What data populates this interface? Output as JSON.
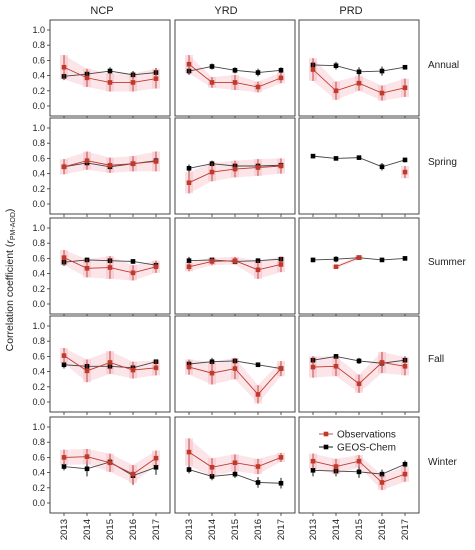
{
  "chart_data": {
    "type": "line",
    "layout": "small-multiples grid, 5 rows x 3 columns",
    "ylabel": "Correlation coefficient (r_PM-AOD)",
    "ylabel_main": "Correlation coefficient (",
    "ylabel_r": "r",
    "ylabel_sub": "PM-AOD",
    "ylabel_close": ")",
    "ylim": [
      0,
      1
    ],
    "yticks": [
      "0.0",
      "0.2",
      "0.4",
      "0.6",
      "0.8",
      "1.0"
    ],
    "x": [
      "2013",
      "2014",
      "2015",
      "2016",
      "2017"
    ],
    "columns": [
      "NCP",
      "YRD",
      "PRD"
    ],
    "rows": [
      "Annual",
      "Spring",
      "Summer",
      "Fall",
      "Winter"
    ],
    "legend": {
      "placement": "inside bottom-right panel, top-right",
      "entries": [
        "Observations",
        "GEOS-Chem"
      ]
    },
    "series_colors": {
      "Observations": "#c0392b",
      "GEOS-Chem": "#000000",
      "error_band": "#f5b5c0"
    },
    "panels": [
      [
        {
          "obs": [
            0.51,
            0.37,
            0.31,
            0.31,
            0.36
          ],
          "obs_err": [
            0.16,
            0.12,
            0.12,
            0.12,
            0.13
          ],
          "model": [
            0.39,
            0.42,
            0.46,
            0.41,
            0.44
          ],
          "model_err": [
            0.05,
            0.05,
            0.05,
            0.05,
            0.06
          ]
        },
        {
          "obs": [
            0.55,
            0.31,
            0.31,
            0.25,
            0.37
          ],
          "obs_err": [
            0.12,
            0.07,
            0.1,
            0.07,
            0.07
          ],
          "model": [
            0.46,
            0.52,
            0.47,
            0.44,
            0.47
          ],
          "model_err": [
            0.05,
            0.04,
            0.04,
            0.05,
            0.04
          ]
        },
        {
          "obs": [
            0.48,
            0.2,
            0.3,
            0.17,
            0.24
          ],
          "obs_err": [
            0.15,
            0.12,
            0.1,
            0.1,
            0.12
          ],
          "model": [
            0.54,
            0.53,
            0.45,
            0.46,
            0.51
          ],
          "model_err": [
            0.05,
            0.05,
            0.06,
            0.06,
            0.03
          ]
        }
      ],
      [
        {
          "obs": [
            0.49,
            0.57,
            0.51,
            0.53,
            0.56
          ],
          "obs_err": [
            0.1,
            0.12,
            0.1,
            0.1,
            0.13
          ],
          "model": [
            0.49,
            0.54,
            0.49,
            0.53,
            0.57
          ],
          "model_err": [
            0.05,
            0.05,
            0.05,
            0.05,
            0.05
          ]
        },
        {
          "obs": [
            0.28,
            0.42,
            0.46,
            0.48,
            0.5
          ],
          "obs_err": [
            0.14,
            0.12,
            0.11,
            0.11,
            0.1
          ],
          "model": [
            0.47,
            0.53,
            0.5,
            0.5,
            0.51
          ],
          "model_err": [
            0.05,
            0.04,
            0.04,
            0.04,
            0.04
          ]
        },
        {
          "obs": [
            null,
            null,
            null,
            null,
            0.42
          ],
          "obs_err": [
            0,
            0,
            0,
            0,
            0.08
          ],
          "model": [
            0.63,
            0.6,
            0.61,
            0.49,
            0.58
          ],
          "model_err": [
            0.02,
            0.02,
            0.02,
            0.05,
            0.03
          ]
        }
      ],
      [
        {
          "obs": [
            0.61,
            0.47,
            0.48,
            0.41,
            0.49
          ],
          "obs_err": [
            0.1,
            0.12,
            0.15,
            0.1,
            0.08
          ],
          "model": [
            0.55,
            0.58,
            0.57,
            0.56,
            0.51
          ],
          "model_err": [
            0.05,
            0.03,
            0.03,
            0.03,
            0.04
          ]
        },
        {
          "obs": [
            0.49,
            0.56,
            0.57,
            0.45,
            0.52
          ],
          "obs_err": [
            0.06,
            0.05,
            0.05,
            0.12,
            0.1
          ],
          "model": [
            0.57,
            0.58,
            0.56,
            0.57,
            0.59
          ],
          "model_err": [
            0.05,
            0.03,
            0.03,
            0.03,
            0.03
          ]
        },
        {
          "obs": [
            null,
            0.49,
            0.61,
            null,
            null
          ],
          "obs_err": [
            0,
            0.02,
            0.03,
            0,
            0
          ],
          "model": [
            0.58,
            0.59,
            0.61,
            0.58,
            0.6
          ],
          "model_err": [
            0.03,
            0.04,
            0.02,
            0.02,
            0.02
          ]
        }
      ],
      [
        {
          "obs": [
            0.61,
            0.41,
            0.52,
            0.42,
            0.45
          ],
          "obs_err": [
            0.1,
            0.15,
            0.15,
            0.11,
            0.1
          ],
          "model": [
            0.49,
            0.47,
            0.47,
            0.45,
            0.53
          ],
          "model_err": [
            0.05,
            0.05,
            0.05,
            0.04,
            0.03
          ]
        },
        {
          "obs": [
            0.46,
            0.38,
            0.44,
            0.1,
            0.44
          ],
          "obs_err": [
            0.1,
            0.15,
            0.14,
            0.12,
            0.1
          ],
          "model": [
            0.5,
            0.53,
            0.54,
            0.49,
            0.44
          ],
          "model_err": [
            0.05,
            0.05,
            0.03,
            0.03,
            0.06
          ]
        },
        {
          "obs": [
            0.46,
            0.47,
            0.24,
            0.52,
            0.47
          ],
          "obs_err": [
            0.14,
            0.13,
            0.12,
            0.14,
            0.12
          ],
          "model": [
            0.55,
            0.6,
            0.54,
            0.51,
            0.55
          ],
          "model_err": [
            0.05,
            0.03,
            0.04,
            0.05,
            0.05
          ]
        }
      ],
      [
        {
          "obs": [
            0.6,
            0.61,
            0.53,
            0.38,
            0.59
          ],
          "obs_err": [
            0.1,
            0.1,
            0.12,
            0.12,
            0.1
          ],
          "model": [
            0.48,
            0.45,
            0.54,
            0.36,
            0.47
          ],
          "model_err": [
            0.05,
            0.1,
            0.05,
            0.12,
            0.1
          ]
        },
        {
          "obs": [
            0.67,
            0.47,
            0.53,
            0.48,
            0.6
          ],
          "obs_err": [
            0.18,
            0.12,
            0.11,
            0.1,
            0.06
          ],
          "model": [
            0.44,
            0.35,
            0.38,
            0.27,
            0.26
          ],
          "model_err": [
            0.05,
            0.05,
            0.05,
            0.07,
            0.07
          ]
        },
        {
          "obs": [
            0.55,
            0.48,
            0.55,
            0.27,
            0.38
          ],
          "obs_err": [
            0.1,
            0.1,
            0.08,
            0.1,
            0.1
          ],
          "model": [
            0.43,
            0.42,
            0.41,
            0.38,
            0.51
          ],
          "model_err": [
            0.08,
            0.07,
            0.08,
            0.06,
            0.05
          ]
        }
      ]
    ]
  }
}
